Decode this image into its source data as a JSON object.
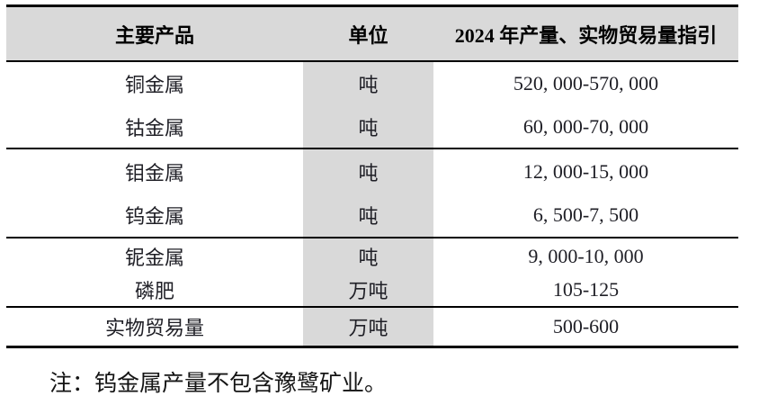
{
  "table": {
    "header": {
      "product": "主要产品",
      "unit": "单位",
      "guidance": "2024 年产量、实物贸易量指引"
    },
    "rows": [
      {
        "product": "铜金属",
        "unit": "吨",
        "guidance": "520, 000-570, 000"
      },
      {
        "product": "钴金属",
        "unit": "吨",
        "guidance": "60, 000-70, 000"
      },
      {
        "product": "钼金属",
        "unit": "吨",
        "guidance": "12, 000-15, 000"
      },
      {
        "product": "钨金属",
        "unit": "吨",
        "guidance": "6, 500-7, 500"
      },
      {
        "product": "铌金属",
        "unit": "吨",
        "guidance": "9, 000-10, 000"
      },
      {
        "product": "磷肥",
        "unit": "万吨",
        "guidance": "105-125"
      },
      {
        "product": "实物贸易量",
        "unit": "万吨",
        "guidance": "500-600"
      }
    ]
  },
  "note": "注：钨金属产量不包含豫鹭矿业。",
  "colors": {
    "header_background": "#d9d9d9",
    "unit_column_background": "#d9d9d9",
    "border": "#000000",
    "text": "#1f1f26"
  }
}
